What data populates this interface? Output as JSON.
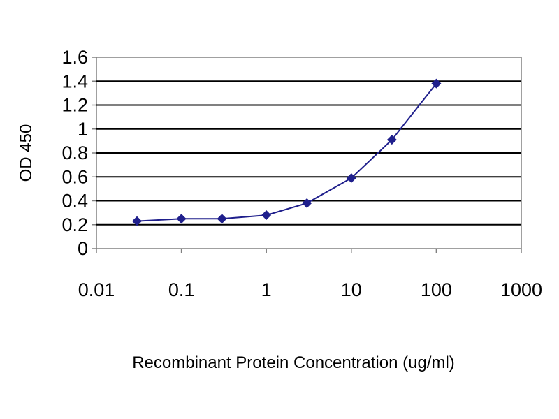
{
  "chart_data": {
    "type": "line",
    "title": "",
    "xlabel": "Recombinant Protein Concentration (ug/ml)",
    "ylabel": "OD 450",
    "x_scale": "log",
    "xlim": [
      0.01,
      1000
    ],
    "ylim": [
      0,
      1.6
    ],
    "x_ticks": [
      "0.01",
      "0.1",
      "1",
      "10",
      "100",
      "1000"
    ],
    "y_ticks": [
      "0",
      "0.2",
      "0.4",
      "0.6",
      "0.8",
      "1",
      "1.2",
      "1.4",
      "1.6"
    ],
    "grid": true,
    "legend": "none",
    "colors": {
      "series": "#1f1f8c",
      "grid": "#000000",
      "axis": "#808080",
      "plot_bg": "#ffffff"
    },
    "series": [
      {
        "x": [
          0.03,
          0.1,
          0.3,
          1,
          3,
          10,
          30,
          100
        ],
        "y": [
          0.23,
          0.25,
          0.25,
          0.28,
          0.38,
          0.59,
          0.91,
          1.38
        ]
      }
    ]
  }
}
